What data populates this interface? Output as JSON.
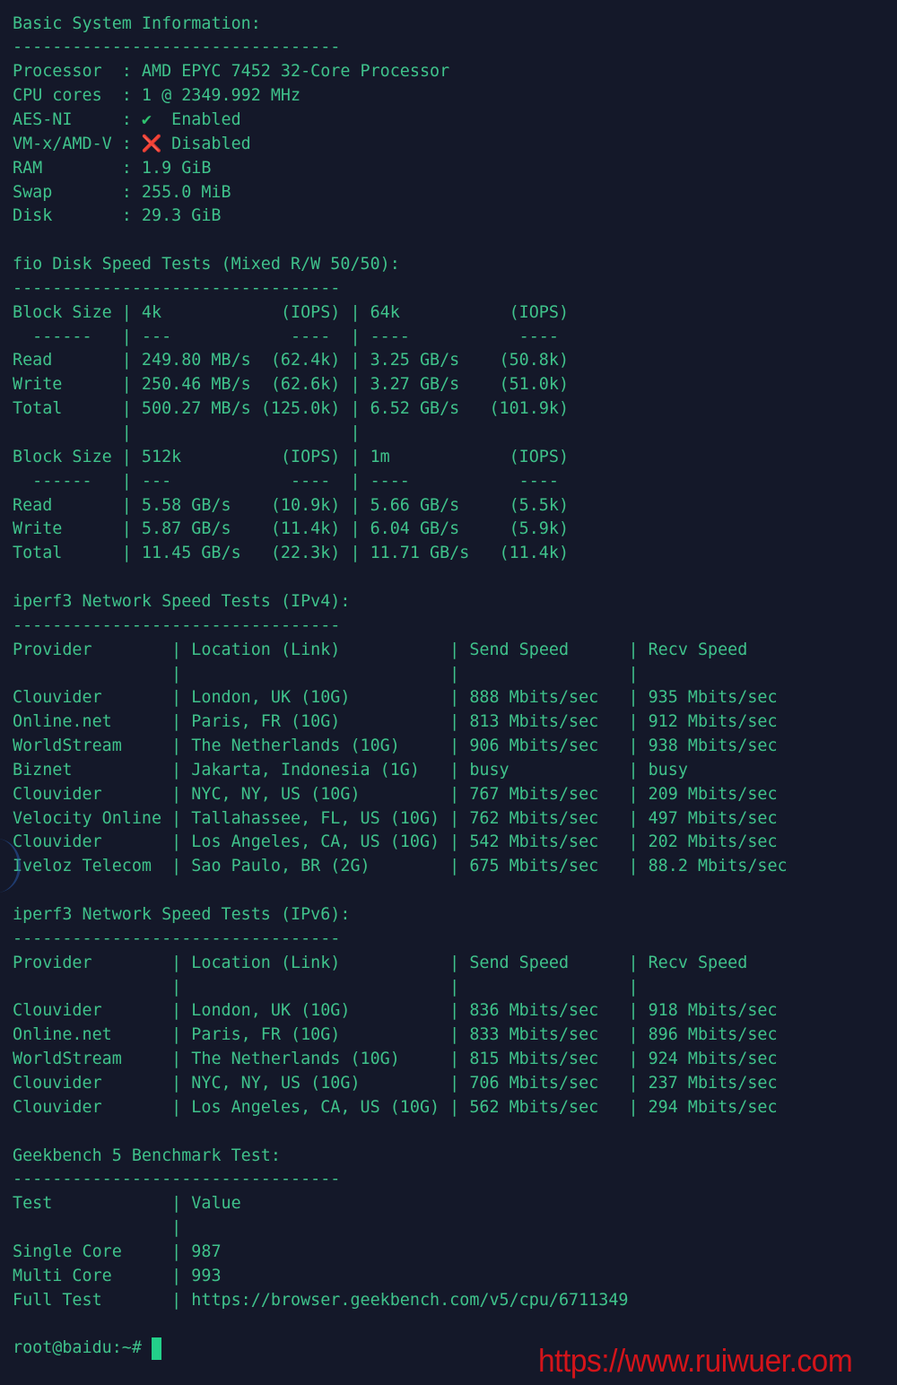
{
  "colors": {
    "background": "#141829",
    "text": "#3fc28b",
    "check": "#2fc26f",
    "cross": "#e0242a",
    "watermark": "#d4141a"
  },
  "divider": "---------------------------------",
  "basic": {
    "title": "Basic System Information:",
    "rows": [
      {
        "label": "Processor",
        "value": "AMD EPYC 7452 32-Core Processor"
      },
      {
        "label": "CPU cores",
        "value": "1 @ 2349.992 MHz"
      },
      {
        "label": "AES-NI",
        "icon": "check-icon",
        "icon_glyph": "✔",
        "value": "Enabled"
      },
      {
        "label": "VM-x/AMD-V",
        "icon": "cross-icon",
        "icon_glyph": "❌",
        "value": "Disabled"
      },
      {
        "label": "RAM",
        "value": "1.9 GiB"
      },
      {
        "label": "Swap",
        "value": "255.0 MiB"
      },
      {
        "label": "Disk",
        "value": "29.3 GiB"
      }
    ]
  },
  "fio": {
    "title": "fio Disk Speed Tests (Mixed R/W 50/50):",
    "tables": [
      {
        "header": [
          "Block Size",
          "4k",
          "(IOPS)",
          "64k",
          "(IOPS)"
        ],
        "dashes": [
          "------",
          "---",
          "----",
          "----",
          "----"
        ],
        "rows": [
          [
            "Read",
            "249.80 MB/s",
            "(62.4k)",
            "3.25 GB/s",
            "(50.8k)"
          ],
          [
            "Write",
            "250.46 MB/s",
            "(62.6k)",
            "3.27 GB/s",
            "(51.0k)"
          ],
          [
            "Total",
            "500.27 MB/s",
            "(125.0k)",
            "6.52 GB/s",
            "(101.9k)"
          ]
        ]
      },
      {
        "header": [
          "Block Size",
          "512k",
          "(IOPS)",
          "1m",
          "(IOPS)"
        ],
        "dashes": [
          "------",
          "---",
          "----",
          "----",
          "----"
        ],
        "rows": [
          [
            "Read",
            "5.58 GB/s",
            "(10.9k)",
            "5.66 GB/s",
            "(5.5k)"
          ],
          [
            "Write",
            "5.87 GB/s",
            "(11.4k)",
            "6.04 GB/s",
            "(5.9k)"
          ],
          [
            "Total",
            "11.45 GB/s",
            "(22.3k)",
            "11.71 GB/s",
            "(11.4k)"
          ]
        ]
      }
    ]
  },
  "ipv4": {
    "title": "iperf3 Network Speed Tests (IPv4):",
    "header": [
      "Provider",
      "Location (Link)",
      "Send Speed",
      "Recv Speed"
    ],
    "rows": [
      [
        "Clouvider",
        "London, UK (10G)",
        "888 Mbits/sec",
        "935 Mbits/sec"
      ],
      [
        "Online.net",
        "Paris, FR (10G)",
        "813 Mbits/sec",
        "912 Mbits/sec"
      ],
      [
        "WorldStream",
        "The Netherlands (10G)",
        "906 Mbits/sec",
        "938 Mbits/sec"
      ],
      [
        "Biznet",
        "Jakarta, Indonesia (1G)",
        "busy",
        "busy"
      ],
      [
        "Clouvider",
        "NYC, NY, US (10G)",
        "767 Mbits/sec",
        "209 Mbits/sec"
      ],
      [
        "Velocity Online",
        "Tallahassee, FL, US (10G)",
        "762 Mbits/sec",
        "497 Mbits/sec"
      ],
      [
        "Clouvider",
        "Los Angeles, CA, US (10G)",
        "542 Mbits/sec",
        "202 Mbits/sec"
      ],
      [
        "Iveloz Telecom",
        "Sao Paulo, BR (2G)",
        "675 Mbits/sec",
        "88.2 Mbits/sec"
      ]
    ]
  },
  "ipv6": {
    "title": "iperf3 Network Speed Tests (IPv6):",
    "header": [
      "Provider",
      "Location (Link)",
      "Send Speed",
      "Recv Speed"
    ],
    "rows": [
      [
        "Clouvider",
        "London, UK (10G)",
        "836 Mbits/sec",
        "918 Mbits/sec"
      ],
      [
        "Online.net",
        "Paris, FR (10G)",
        "833 Mbits/sec",
        "896 Mbits/sec"
      ],
      [
        "WorldStream",
        "The Netherlands (10G)",
        "815 Mbits/sec",
        "924 Mbits/sec"
      ],
      [
        "Clouvider",
        "NYC, NY, US (10G)",
        "706 Mbits/sec",
        "237 Mbits/sec"
      ],
      [
        "Clouvider",
        "Los Angeles, CA, US (10G)",
        "562 Mbits/sec",
        "294 Mbits/sec"
      ]
    ]
  },
  "geekbench": {
    "title": "Geekbench 5 Benchmark Test:",
    "header": [
      "Test",
      "Value"
    ],
    "rows": [
      [
        "Single Core",
        "987"
      ],
      [
        "Multi Core",
        "993"
      ],
      [
        "Full Test",
        "https://browser.geekbench.com/v5/cpu/6711349"
      ]
    ]
  },
  "prompt": "root@baidu:~#",
  "watermark": "https://www.ruiwuer.com"
}
